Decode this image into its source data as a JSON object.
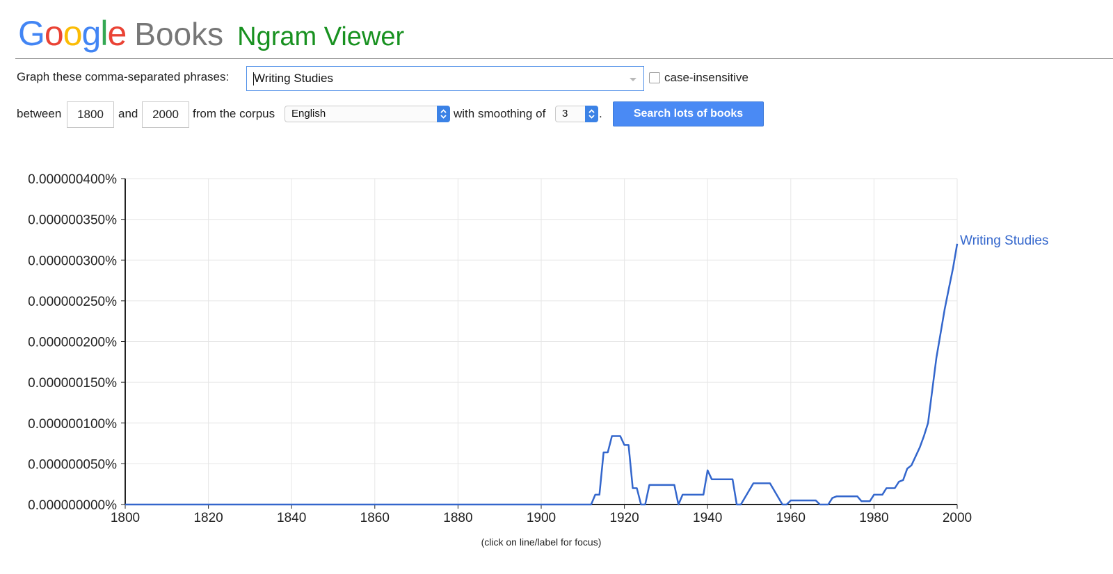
{
  "header": {
    "logo_letters": [
      {
        "char": "G",
        "color": "#4285F4"
      },
      {
        "char": "o",
        "color": "#EA4335"
      },
      {
        "char": "o",
        "color": "#FBBC05"
      },
      {
        "char": "g",
        "color": "#4285F4"
      },
      {
        "char": "l",
        "color": "#34A853"
      },
      {
        "char": "e",
        "color": "#EA4335"
      }
    ],
    "books_label": "Books",
    "app_title": "Ngram Viewer"
  },
  "controls": {
    "phrases_label": "Graph these comma-separated phrases:",
    "phrases_value": "Writing Studies",
    "case_insensitive_label": "case-insensitive",
    "case_insensitive_checked": false,
    "between_label": "between",
    "start_year": "1800",
    "and_label": "and",
    "end_year": "2000",
    "corpus_label": "from the corpus",
    "corpus_value": "English",
    "smoothing_label": "with smoothing of",
    "smoothing_value": "3",
    "period": ".",
    "search_button": "Search lots of books"
  },
  "footnote": "(click on line/label for focus)",
  "colors": {
    "series": "#3366CC",
    "grid": "#E6E6E6",
    "axis": "#222222",
    "title_green": "#189120",
    "button_blue": "#4A8AF4"
  },
  "chart_data": {
    "type": "line",
    "xlim": [
      1800,
      2000
    ],
    "ylim": [
      0,
      4e-09
    ],
    "x_ticks": [
      "1800",
      "1820",
      "1840",
      "1860",
      "1880",
      "1900",
      "1920",
      "1940",
      "1960",
      "1980",
      "2000"
    ],
    "y_ticks": [
      "0.000000000%",
      "0.000000050%",
      "0.000000100%",
      "0.000000150%",
      "0.000000200%",
      "0.000000250%",
      "0.000000300%",
      "0.000000350%",
      "0.000000400%"
    ],
    "y_tick_values": [
      0,
      5e-10,
      1e-09,
      1.5e-09,
      2e-09,
      2.5e-09,
      3e-09,
      3.5e-09,
      4e-09
    ],
    "grid": true,
    "series": [
      {
        "name": "Writing Studies",
        "points": [
          [
            1800,
            0
          ],
          [
            1912,
            0
          ],
          [
            1913,
            1.2e-10
          ],
          [
            1914,
            1.2e-10
          ],
          [
            1915,
            6.4e-10
          ],
          [
            1916,
            6.4e-10
          ],
          [
            1917,
            8.4e-10
          ],
          [
            1918,
            8.4e-10
          ],
          [
            1919,
            8.4e-10
          ],
          [
            1920,
            7.3e-10
          ],
          [
            1921,
            7.3e-10
          ],
          [
            1922,
            2e-10
          ],
          [
            1923,
            2e-10
          ],
          [
            1924,
            0
          ],
          [
            1925,
            0
          ],
          [
            1926,
            2.4e-10
          ],
          [
            1932,
            2.4e-10
          ],
          [
            1933,
            0
          ],
          [
            1934,
            1.2e-10
          ],
          [
            1939,
            1.2e-10
          ],
          [
            1940,
            4.2e-10
          ],
          [
            1941,
            3.1e-10
          ],
          [
            1946,
            3.1e-10
          ],
          [
            1947,
            0
          ],
          [
            1948,
            0
          ],
          [
            1951,
            2.6e-10
          ],
          [
            1955,
            2.6e-10
          ],
          [
            1958,
            0
          ],
          [
            1959,
            0
          ],
          [
            1960,
            5e-11
          ],
          [
            1966,
            5e-11
          ],
          [
            1967,
            0
          ],
          [
            1969,
            0
          ],
          [
            1970,
            8e-11
          ],
          [
            1971,
            1e-10
          ],
          [
            1976,
            1e-10
          ],
          [
            1977,
            4e-11
          ],
          [
            1979,
            4e-11
          ],
          [
            1980,
            1.2e-10
          ],
          [
            1982,
            1.2e-10
          ],
          [
            1983,
            2e-10
          ],
          [
            1985,
            2e-10
          ],
          [
            1986,
            2.8e-10
          ],
          [
            1987,
            3e-10
          ],
          [
            1988,
            4.4e-10
          ],
          [
            1989,
            4.8e-10
          ],
          [
            1990,
            5.9e-10
          ],
          [
            1991,
            7e-10
          ],
          [
            1992,
            8.4e-10
          ],
          [
            1993,
            1e-09
          ],
          [
            1994,
            1.4e-09
          ],
          [
            1995,
            1.8e-09
          ],
          [
            1996,
            2.1e-09
          ],
          [
            1997,
            2.4e-09
          ],
          [
            1998,
            2.65e-09
          ],
          [
            1999,
            2.9e-09
          ],
          [
            2000,
            3.2e-09
          ]
        ]
      }
    ]
  }
}
